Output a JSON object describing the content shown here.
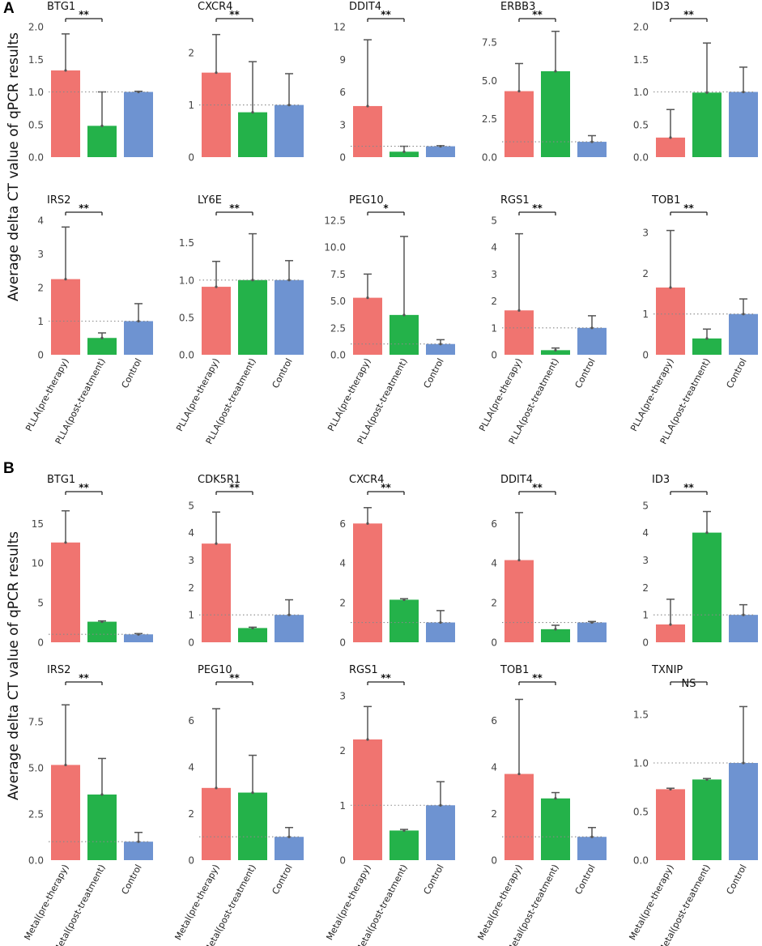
{
  "panels": {
    "a": {
      "letter": "A",
      "ylabel": "Average delta CT value of qPCR results"
    },
    "b": {
      "letter": "B",
      "ylabel": "Average delta CT value of qPCR results"
    }
  },
  "colors": {
    "pre": "#F07470",
    "post": "#24B24A",
    "control": "#6E93D1",
    "errorbar": "#555555",
    "refline": "#888888"
  },
  "chart_data": [
    {
      "panel": "A",
      "type": "bar",
      "title": "BTG1",
      "categories": [
        "PLLA(pre-therapy)",
        "PLLA(post-treatment)",
        "Control"
      ],
      "values": [
        1.33,
        0.48,
        1.0
      ],
      "error_upper": [
        1.89,
        1.0,
        1.01
      ],
      "ylim": [
        0,
        2.0
      ],
      "yticks": [
        "0.0",
        "0.5",
        "1.0",
        "1.5",
        "2.0"
      ],
      "yticks_values": [
        0,
        0.5,
        1.0,
        1.5,
        2.0
      ],
      "reference_line": 1,
      "significance": "**"
    },
    {
      "panel": "A",
      "type": "bar",
      "title": "CXCR4",
      "categories": [
        "PLLA(pre-therapy)",
        "PLLA(post-treatment)",
        "Control"
      ],
      "values": [
        1.62,
        0.86,
        1.0
      ],
      "error_upper": [
        2.35,
        1.83,
        1.6
      ],
      "ylim": [
        0,
        2.5
      ],
      "yticks": [
        "0",
        "1",
        "2"
      ],
      "yticks_values": [
        0,
        1,
        2
      ],
      "reference_line": 1,
      "significance": "**"
    },
    {
      "panel": "A",
      "type": "bar",
      "title": "DDIT4",
      "categories": [
        "PLLA(pre-therapy)",
        "PLLA(post-treatment)",
        "Control"
      ],
      "values": [
        4.7,
        0.5,
        1.0
      ],
      "error_upper": [
        10.8,
        1.0,
        1.05
      ],
      "ylim": [
        0,
        12
      ],
      "yticks": [
        "0",
        "3",
        "6",
        "9",
        "12"
      ],
      "yticks_values": [
        0,
        3,
        6,
        9,
        12
      ],
      "reference_line": 1,
      "significance": "**"
    },
    {
      "panel": "A",
      "type": "bar",
      "title": "ERBB3",
      "categories": [
        "PLLA(pre-therapy)",
        "PLLA(post-treatment)",
        "Control"
      ],
      "values": [
        4.3,
        5.6,
        1.0
      ],
      "error_upper": [
        6.1,
        8.2,
        1.4
      ],
      "ylim": [
        0,
        8.5
      ],
      "yticks": [
        "0.0",
        "2.5",
        "5.0",
        "7.5"
      ],
      "yticks_values": [
        0,
        2.5,
        5.0,
        7.5
      ],
      "reference_line": 1,
      "significance": "**"
    },
    {
      "panel": "A",
      "type": "bar",
      "title": "ID3",
      "categories": [
        "PLLA(pre-therapy)",
        "PLLA(post-treatment)",
        "Control"
      ],
      "values": [
        0.3,
        0.99,
        1.0
      ],
      "error_upper": [
        0.73,
        1.75,
        1.38
      ],
      "ylim": [
        0,
        2.0
      ],
      "yticks": [
        "0.0",
        "0.5",
        "1.0",
        "1.5",
        "2.0"
      ],
      "yticks_values": [
        0,
        0.5,
        1.0,
        1.5,
        2.0
      ],
      "reference_line": 1,
      "significance": "**"
    },
    {
      "panel": "A",
      "type": "bar",
      "title": "IRS2",
      "categories": [
        "PLLA(pre-therapy)",
        "PLLA(post-treatment)",
        "Control"
      ],
      "values": [
        2.25,
        0.5,
        1.0
      ],
      "error_upper": [
        3.8,
        0.65,
        1.52
      ],
      "ylim": [
        0,
        4
      ],
      "yticks": [
        "0",
        "1",
        "2",
        "3",
        "4"
      ],
      "yticks_values": [
        0,
        1,
        2,
        3,
        4
      ],
      "reference_line": 1,
      "significance": "**"
    },
    {
      "panel": "A",
      "type": "bar",
      "title": "LY6E",
      "categories": [
        "PLLA(pre-therapy)",
        "PLLA(post-treatment)",
        "Control"
      ],
      "values": [
        0.91,
        1.0,
        1.0
      ],
      "error_upper": [
        1.25,
        1.62,
        1.26
      ],
      "ylim": [
        0,
        1.8
      ],
      "yticks": [
        "0.0",
        "0.5",
        "1.0",
        "1.5"
      ],
      "yticks_values": [
        0,
        0.5,
        1.0,
        1.5
      ],
      "reference_line": 1,
      "significance": "**"
    },
    {
      "panel": "A",
      "type": "bar",
      "title": "PEG10",
      "categories": [
        "PLLA(pre-therapy)",
        "PLLA(post-treatment)",
        "Control"
      ],
      "values": [
        5.3,
        3.7,
        1.0
      ],
      "error_upper": [
        7.5,
        11.0,
        1.4
      ],
      "ylim": [
        0,
        12.5
      ],
      "yticks": [
        "0.0",
        "2.5",
        "5.0",
        "7.5",
        "10.0",
        "12.5"
      ],
      "yticks_values": [
        0,
        2.5,
        5.0,
        7.5,
        10.0,
        12.5
      ],
      "reference_line": 1,
      "significance": "*"
    },
    {
      "panel": "A",
      "type": "bar",
      "title": "RGS1",
      "categories": [
        "PLLA(pre-therapy)",
        "PLLA(post-treatment)",
        "Control"
      ],
      "values": [
        1.65,
        0.17,
        1.0
      ],
      "error_upper": [
        4.5,
        0.25,
        1.45
      ],
      "ylim": [
        0,
        5
      ],
      "yticks": [
        "0",
        "1",
        "2",
        "3",
        "4",
        "5"
      ],
      "yticks_values": [
        0,
        1,
        2,
        3,
        4,
        5
      ],
      "reference_line": 1,
      "significance": "**"
    },
    {
      "panel": "A",
      "type": "bar",
      "title": "TOB1",
      "categories": [
        "PLLA(pre-therapy)",
        "PLLA(post-treatment)",
        "Control"
      ],
      "values": [
        1.65,
        0.4,
        1.0
      ],
      "error_upper": [
        3.05,
        0.63,
        1.37
      ],
      "ylim": [
        0,
        3.3
      ],
      "yticks": [
        "0",
        "1",
        "2",
        "3"
      ],
      "yticks_values": [
        0,
        1,
        2,
        3
      ],
      "reference_line": 1,
      "significance": "**"
    },
    {
      "panel": "B",
      "type": "bar",
      "title": "BTG1",
      "categories": [
        "Metal(pre-therapy)",
        "Metal(post-treatment)",
        "Control"
      ],
      "values": [
        12.6,
        2.6,
        1.0
      ],
      "error_upper": [
        16.6,
        2.7,
        1.1
      ],
      "ylim": [
        0,
        18
      ],
      "yticks": [
        "0",
        "5",
        "10",
        "15"
      ],
      "yticks_values": [
        0,
        5,
        10,
        15
      ],
      "reference_line": 1,
      "significance": "**"
    },
    {
      "panel": "B",
      "type": "bar",
      "title": "CDK5R1",
      "categories": [
        "Metal(pre-therapy)",
        "Metal(post-treatment)",
        "Control"
      ],
      "values": [
        3.6,
        0.52,
        1.0
      ],
      "error_upper": [
        4.75,
        0.55,
        1.55
      ],
      "ylim": [
        0,
        5.2
      ],
      "yticks": [
        "0",
        "1",
        "2",
        "3",
        "4",
        "5"
      ],
      "yticks_values": [
        0,
        1,
        2,
        3,
        4,
        5
      ],
      "reference_line": 1,
      "significance": "**"
    },
    {
      "panel": "B",
      "type": "bar",
      "title": "CXCR4",
      "categories": [
        "Metal(pre-therapy)",
        "Metal(post-treatment)",
        "Control"
      ],
      "values": [
        6.0,
        2.15,
        1.0
      ],
      "error_upper": [
        6.8,
        2.2,
        1.6
      ],
      "ylim": [
        0,
        7.2
      ],
      "yticks": [
        "0",
        "2",
        "4",
        "6"
      ],
      "yticks_values": [
        0,
        2,
        4,
        6
      ],
      "reference_line": 1,
      "significance": "**"
    },
    {
      "panel": "B",
      "type": "bar",
      "title": "DDIT4",
      "categories": [
        "Metal(pre-therapy)",
        "Metal(post-treatment)",
        "Control"
      ],
      "values": [
        4.15,
        0.66,
        1.0
      ],
      "error_upper": [
        6.55,
        0.86,
        1.05
      ],
      "ylim": [
        0,
        7.2
      ],
      "yticks": [
        "0",
        "2",
        "4",
        "6"
      ],
      "yticks_values": [
        0,
        2,
        4,
        6
      ],
      "reference_line": 1,
      "significance": "**"
    },
    {
      "panel": "B",
      "type": "bar",
      "title": "ID3",
      "categories": [
        "Metal(pre-therapy)",
        "Metal(post-treatment)",
        "Control"
      ],
      "values": [
        0.65,
        4.0,
        1.0
      ],
      "error_upper": [
        1.57,
        4.77,
        1.37
      ],
      "ylim": [
        0,
        5.2
      ],
      "yticks": [
        "0",
        "1",
        "2",
        "3",
        "4",
        "5"
      ],
      "yticks_values": [
        0,
        1,
        2,
        3,
        4,
        5
      ],
      "reference_line": 1,
      "significance": "**"
    },
    {
      "panel": "B",
      "type": "bar",
      "title": "IRS2",
      "categories": [
        "Metal(pre-therapy)",
        "Metal(post-treatment)",
        "Control"
      ],
      "values": [
        5.15,
        3.55,
        1.0
      ],
      "error_upper": [
        8.4,
        5.5,
        1.5
      ],
      "ylim": [
        0,
        9.2
      ],
      "yticks": [
        "0.0",
        "2.5",
        "5.0",
        "7.5"
      ],
      "yticks_values": [
        0,
        2.5,
        5.0,
        7.5
      ],
      "reference_line": 1,
      "significance": "**"
    },
    {
      "panel": "B",
      "type": "bar",
      "title": "PEG10",
      "categories": [
        "Metal(pre-therapy)",
        "Metal(post-treatment)",
        "Control"
      ],
      "values": [
        3.1,
        2.9,
        1.0
      ],
      "error_upper": [
        6.5,
        4.5,
        1.4
      ],
      "ylim": [
        0,
        7.3
      ],
      "yticks": [
        "0",
        "2",
        "4",
        "6"
      ],
      "yticks_values": [
        0,
        2,
        4,
        6
      ],
      "reference_line": 1,
      "significance": "**"
    },
    {
      "panel": "B",
      "type": "bar",
      "title": "RGS1",
      "categories": [
        "Metal(pre-therapy)",
        "Metal(post-treatment)",
        "Control"
      ],
      "values": [
        2.2,
        0.54,
        1.0
      ],
      "error_upper": [
        2.8,
        0.56,
        1.43
      ],
      "ylim": [
        0,
        3.1
      ],
      "yticks": [
        "0",
        "1",
        "2",
        "3"
      ],
      "yticks_values": [
        0,
        1,
        2,
        3
      ],
      "reference_line": 1,
      "significance": "**"
    },
    {
      "panel": "B",
      "type": "bar",
      "title": "TOB1",
      "categories": [
        "Metal(pre-therapy)",
        "Metal(post-treatment)",
        "Control"
      ],
      "values": [
        3.7,
        2.65,
        1.0
      ],
      "error_upper": [
        6.9,
        2.9,
        1.4
      ],
      "ylim": [
        0,
        7.3
      ],
      "yticks": [
        "0",
        "2",
        "4",
        "6"
      ],
      "yticks_values": [
        0,
        2,
        4,
        6
      ],
      "reference_line": 1,
      "significance": "**"
    },
    {
      "panel": "B",
      "type": "bar",
      "title": "TXNIP",
      "categories": [
        "Metal(pre-therapy)",
        "Metal(post-treatment)",
        "Control"
      ],
      "values": [
        0.73,
        0.83,
        1.0
      ],
      "error_upper": [
        0.74,
        0.84,
        1.58
      ],
      "ylim": [
        0,
        1.75
      ],
      "yticks": [
        "0.0",
        "0.5",
        "1.0",
        "1.5"
      ],
      "yticks_values": [
        0,
        0.5,
        1.0,
        1.5
      ],
      "reference_line": 1,
      "significance": "NS"
    }
  ]
}
